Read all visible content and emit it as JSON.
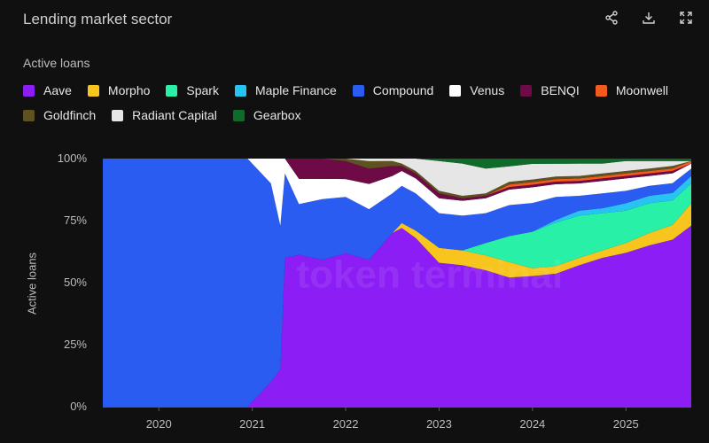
{
  "header": {
    "title": "Lending market sector",
    "share_icon": "share-icon",
    "download_icon": "download-icon",
    "expand_icon": "expand-icon"
  },
  "legend": {
    "title": "Active loans",
    "rows": [
      [
        {
          "label": "Aave",
          "color": "#8c1ef5"
        },
        {
          "label": "Morpho",
          "color": "#f7c51d"
        },
        {
          "label": "Spark",
          "color": "#29f0a7"
        },
        {
          "label": "Maple Finance",
          "color": "#27c3f2"
        },
        {
          "label": "Compound",
          "color": "#2b5cf2"
        },
        {
          "label": "Venus",
          "color": "#ffffff"
        },
        {
          "label": "BENQI",
          "color": "#6e0b47"
        },
        {
          "label": "Moonwell",
          "color": "#f25a1e"
        }
      ],
      [
        {
          "label": "Goldfinch",
          "color": "#5e5220"
        },
        {
          "label": "Radiant Capital",
          "color": "#e6e6e6"
        },
        {
          "label": "Gearbox",
          "color": "#0f6b2a"
        }
      ]
    ]
  },
  "chart_data": {
    "type": "area",
    "stacked": true,
    "normalized": true,
    "ylabel": "Active loans",
    "yticks": [
      "0%",
      "25%",
      "50%",
      "75%",
      "100%"
    ],
    "ylim": [
      0,
      100
    ],
    "xticks": [
      "2020",
      "2021",
      "2022",
      "2023",
      "2024",
      "2025"
    ],
    "x": [
      2019.4,
      2020.0,
      2020.5,
      2020.95,
      2021.0,
      2021.2,
      2021.3,
      2021.35,
      2021.5,
      2021.75,
      2022.0,
      2022.25,
      2022.5,
      2022.6,
      2022.75,
      2023.0,
      2023.25,
      2023.5,
      2023.75,
      2024.0,
      2024.25,
      2024.5,
      2024.75,
      2025.0,
      2025.25,
      2025.5,
      2025.7
    ],
    "series": [
      {
        "name": "Aave",
        "values": [
          0,
          0,
          0,
          0,
          2,
          10,
          15,
          60,
          60,
          58,
          60,
          58,
          70,
          72,
          68,
          58,
          57,
          55,
          50,
          50,
          52,
          57,
          60,
          62,
          65,
          68,
          73
        ]
      },
      {
        "name": "Morpho",
        "values": [
          0,
          0,
          0,
          0,
          0,
          0,
          0,
          0,
          0,
          0,
          0,
          0,
          0,
          2,
          3,
          6,
          6,
          6,
          6,
          3,
          3,
          3,
          3,
          4,
          5,
          6,
          9
        ]
      },
      {
        "name": "Spark",
        "values": [
          0,
          0,
          0,
          0,
          0,
          0,
          0,
          0,
          0,
          0,
          0,
          0,
          0,
          0,
          0,
          0,
          0,
          5,
          10,
          14,
          17,
          17,
          15,
          13,
          12,
          10,
          8
        ]
      },
      {
        "name": "Maple Finance",
        "values": [
          0,
          0,
          0,
          0,
          0,
          0,
          0,
          0,
          0,
          0,
          0,
          0,
          0,
          0,
          0,
          0,
          0,
          0,
          0,
          0,
          1,
          2,
          2,
          3,
          3,
          3,
          3
        ]
      },
      {
        "name": "Compound",
        "values": [
          100,
          100,
          100,
          100,
          96,
          80,
          58,
          34,
          20,
          24,
          22,
          20,
          16,
          15,
          15,
          14,
          14,
          12,
          12,
          11,
          9,
          6,
          6,
          5,
          4,
          4,
          3
        ]
      },
      {
        "name": "Venus",
        "values": [
          0,
          0,
          0,
          0,
          2,
          10,
          27,
          6,
          10,
          8,
          7,
          10,
          7,
          6,
          6,
          6,
          6,
          6,
          6,
          6,
          5,
          5,
          5,
          5,
          4,
          4,
          2
        ]
      },
      {
        "name": "BENQI",
        "values": [
          0,
          0,
          0,
          0,
          0,
          0,
          0,
          0,
          8,
          8,
          7,
          6,
          4,
          2,
          2,
          2,
          1,
          1,
          1,
          1,
          1,
          1,
          1,
          1,
          1,
          1,
          0
        ]
      },
      {
        "name": "Moonwell",
        "values": [
          0,
          0,
          0,
          0,
          0,
          0,
          0,
          0,
          0,
          0,
          0,
          0,
          0,
          0,
          0,
          0,
          0,
          0,
          1,
          1,
          1,
          1,
          1,
          1,
          1,
          1,
          1
        ]
      },
      {
        "name": "Goldfinch",
        "values": [
          0,
          0,
          0,
          0,
          0,
          0,
          0,
          0,
          0,
          0,
          1,
          3,
          2,
          1,
          1,
          1,
          1,
          1,
          1,
          1,
          1,
          1,
          1,
          1,
          1,
          1,
          0
        ]
      },
      {
        "name": "Radiant Capital",
        "values": [
          0,
          0,
          0,
          0,
          0,
          0,
          0,
          0,
          0,
          0,
          0,
          1,
          1,
          2,
          5,
          12,
          13,
          10,
          6,
          6,
          5,
          5,
          4,
          4,
          3,
          2,
          0
        ]
      },
      {
        "name": "Gearbox",
        "values": [
          0,
          0,
          0,
          0,
          0,
          0,
          0,
          0,
          0,
          0,
          0,
          0,
          0,
          0,
          0,
          1,
          2,
          4,
          3,
          2,
          2,
          2,
          2,
          1,
          1,
          1,
          1
        ]
      }
    ],
    "grid": false,
    "legend_position": "top-left",
    "watermark": "token terminal"
  }
}
